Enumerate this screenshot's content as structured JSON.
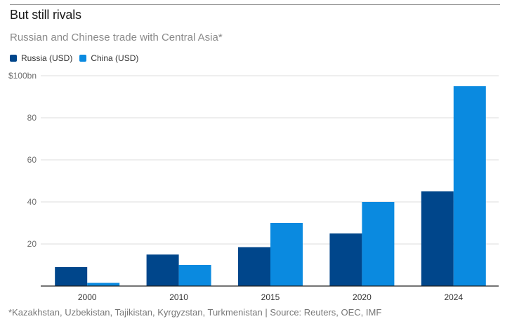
{
  "chart_data": {
    "type": "bar",
    "title": "But still rivals",
    "subtitle": "Russian and Chinese trade with Central Asia*",
    "xlabel": "",
    "ylabel": "",
    "categories": [
      "2000",
      "2010",
      "2015",
      "2020",
      "2024"
    ],
    "series": [
      {
        "name": "Russia (USD)",
        "color": "#00468b",
        "values": [
          9,
          15,
          18.5,
          25,
          45
        ]
      },
      {
        "name": "China (USD)",
        "color": "#0a8ae0",
        "values": [
          1.5,
          10,
          30,
          40,
          95
        ]
      }
    ],
    "ylim": [
      0,
      100
    ],
    "yticks": [
      20,
      40,
      60,
      80,
      100
    ],
    "ytick_labels": [
      "20",
      "40",
      "60",
      "80",
      "$100bn"
    ],
    "grid": true,
    "legend_position": "top-left",
    "footnote": "*Kazakhstan, Uzbekistan, Tajikistan, Kyrgyzstan, Turkmenistan | Source: Reuters, OEC, IMF"
  }
}
